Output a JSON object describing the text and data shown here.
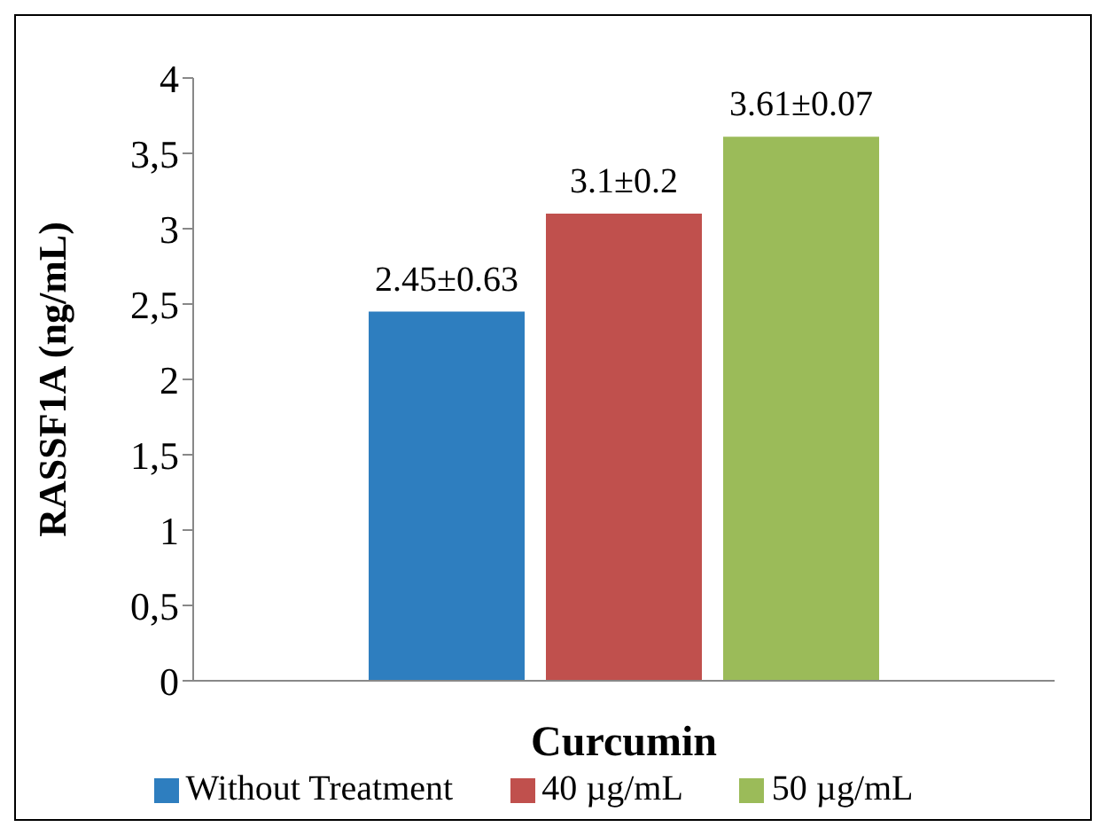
{
  "chart_data": {
    "type": "bar",
    "xlabel": "Curcumin",
    "ylabel": "RASSF1A (ng/mL)",
    "categories": [
      null
    ],
    "series": [
      {
        "name": "Without Treatment",
        "color": "#2e7ebf",
        "values": [
          2.45
        ],
        "value_labels": [
          "2.45±0.63"
        ]
      },
      {
        "name": "40 µg/mL",
        "color": "#c0504d",
        "values": [
          3.1
        ],
        "value_labels": [
          "3.1±0.2"
        ]
      },
      {
        "name": "50 µg/mL",
        "color": "#9bbb59",
        "values": [
          3.61
        ],
        "value_labels": [
          "3.61±0.07"
        ]
      }
    ],
    "ylim": [
      0,
      4
    ],
    "yticks": [
      0,
      {
        "value": 0.5,
        "label": "0,5"
      },
      1,
      {
        "value": 1.5,
        "label": "1,5"
      },
      2,
      {
        "value": 2.5,
        "label": "2,5"
      },
      3,
      {
        "value": 3.5,
        "label": "3,5"
      },
      4
    ],
    "grid": false,
    "legend": "bottom"
  }
}
